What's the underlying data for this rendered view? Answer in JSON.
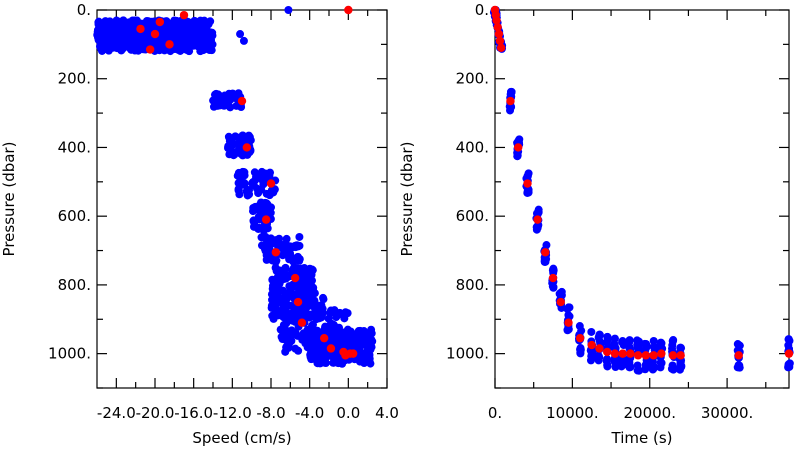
{
  "chart_data": [
    {
      "type": "scatter",
      "xlabel": "Speed (cm/s)",
      "ylabel": "Pressure (dbar)",
      "xlim": [
        -26.0,
        4.0
      ],
      "ylim": [
        1100,
        0
      ],
      "x_ticks": [
        -24.0,
        -20.0,
        -16.0,
        -12.0,
        -8.0,
        -4.0,
        0.0,
        4.0
      ],
      "x_tick_labels": [
        "-24.0",
        "-20.0",
        "-16.0",
        "-12.0",
        "-8.0",
        "-4.0",
        "0.0",
        "4.0"
      ],
      "y_ticks": [
        0,
        200,
        400,
        600,
        800,
        1000
      ],
      "y_tick_labels": [
        "0.",
        "200.",
        "400.",
        "600.",
        "800.",
        "1000."
      ],
      "colors": {
        "samples": "#0000ff",
        "means": "#ff0000"
      },
      "series": [
        {
          "role": "samples",
          "clusters": [
            {
              "x": [
                -26.0,
                -14.0
              ],
              "y": [
                30,
                120
              ],
              "n": 520
            },
            {
              "x": [
                -14.0,
                -11.0
              ],
              "y": [
                240,
                285
              ],
              "n": 40
            },
            {
              "x": [
                -12.5,
                -10.0
              ],
              "y": [
                365,
                425
              ],
              "n": 45
            },
            {
              "x": [
                -11.5,
                -7.5
              ],
              "y": [
                470,
                540
              ],
              "n": 55
            },
            {
              "x": [
                -10.0,
                -8.0
              ],
              "y": [
                560,
                645
              ],
              "n": 50
            },
            {
              "x": [
                -9.0,
                -5.0
              ],
              "y": [
                660,
                740
              ],
              "n": 65
            },
            {
              "x": [
                -8.0,
                -3.5
              ],
              "y": [
                750,
                820
              ],
              "n": 75
            },
            {
              "x": [
                -8.0,
                -2.5
              ],
              "y": [
                820,
                900
              ],
              "n": 110
            },
            {
              "x": [
                -7.0,
                0.0
              ],
              "y": [
                870,
                1000
              ],
              "n": 130
            },
            {
              "x": [
                -4.0,
                2.5
              ],
              "y": [
                930,
                1030
              ],
              "n": 190
            }
          ]
        },
        {
          "role": "means",
          "x": [
            0.0,
            -17.0,
            -19.5,
            -21.5,
            -20.0,
            -18.5,
            -20.5,
            -11.0,
            -10.5,
            -8.0,
            -8.5,
            -7.5,
            -5.5,
            -5.2,
            -4.8,
            -2.5,
            -1.8,
            -0.5,
            0.2,
            -0.3,
            0.5
          ],
          "y": [
            0,
            15,
            35,
            55,
            70,
            100,
            115,
            265,
            400,
            505,
            610,
            705,
            780,
            850,
            910,
            955,
            985,
            995,
            1000,
            1005,
            1000
          ]
        }
      ]
    },
    {
      "type": "scatter",
      "xlabel": "Time (s)",
      "ylabel": "Pressure (dbar)",
      "xlim": [
        0,
        38000
      ],
      "ylim": [
        1100,
        0
      ],
      "x_ticks": [
        0,
        10000,
        20000,
        30000
      ],
      "x_tick_labels": [
        "0.",
        "10000.",
        "20000.",
        "30000."
      ],
      "y_ticks": [
        0,
        200,
        400,
        600,
        800,
        1000
      ],
      "y_tick_labels": [
        "0.",
        "200.",
        "400.",
        "600.",
        "800.",
        "1000."
      ],
      "colors": {
        "samples": "#0000ff",
        "means": "#ff0000"
      },
      "series": [
        {
          "role": "means",
          "x": [
            0,
            100,
            200,
            350,
            500,
            650,
            800,
            2000,
            3000,
            4200,
            5500,
            6500,
            7500,
            8500,
            9500,
            11000,
            12500,
            13500,
            14500,
            15500,
            16500,
            17500,
            18500,
            19500,
            20500,
            21500,
            23000,
            24000,
            31500,
            38000
          ],
          "y": [
            0,
            15,
            30,
            50,
            70,
            90,
            110,
            265,
            400,
            505,
            610,
            705,
            780,
            850,
            910,
            955,
            975,
            985,
            995,
            1000,
            1000,
            1000,
            1005,
            1005,
            1005,
            1000,
            1005,
            1005,
            1005,
            1000
          ]
        }
      ]
    }
  ]
}
